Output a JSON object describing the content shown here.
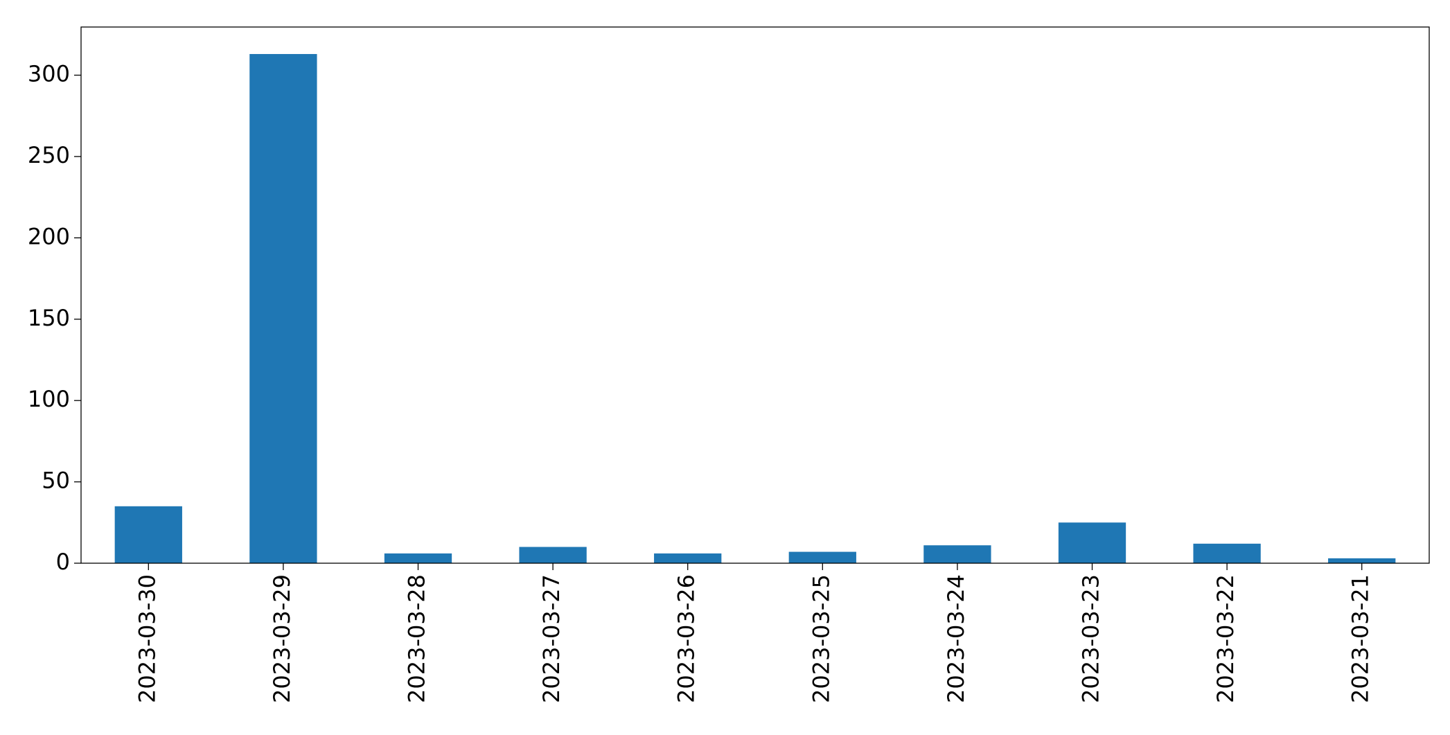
{
  "chart_data": {
    "type": "bar",
    "categories": [
      "2023-03-30",
      "2023-03-29",
      "2023-03-28",
      "2023-03-27",
      "2023-03-26",
      "2023-03-25",
      "2023-03-24",
      "2023-03-23",
      "2023-03-22",
      "2023-03-21"
    ],
    "values": [
      35,
      313,
      6,
      10,
      6,
      7,
      11,
      25,
      12,
      3
    ],
    "color": "#1f77b4",
    "ylim": [
      0,
      329.6
    ],
    "yticks": [
      0,
      50,
      100,
      150,
      200,
      250,
      300
    ],
    "grid": false
  }
}
